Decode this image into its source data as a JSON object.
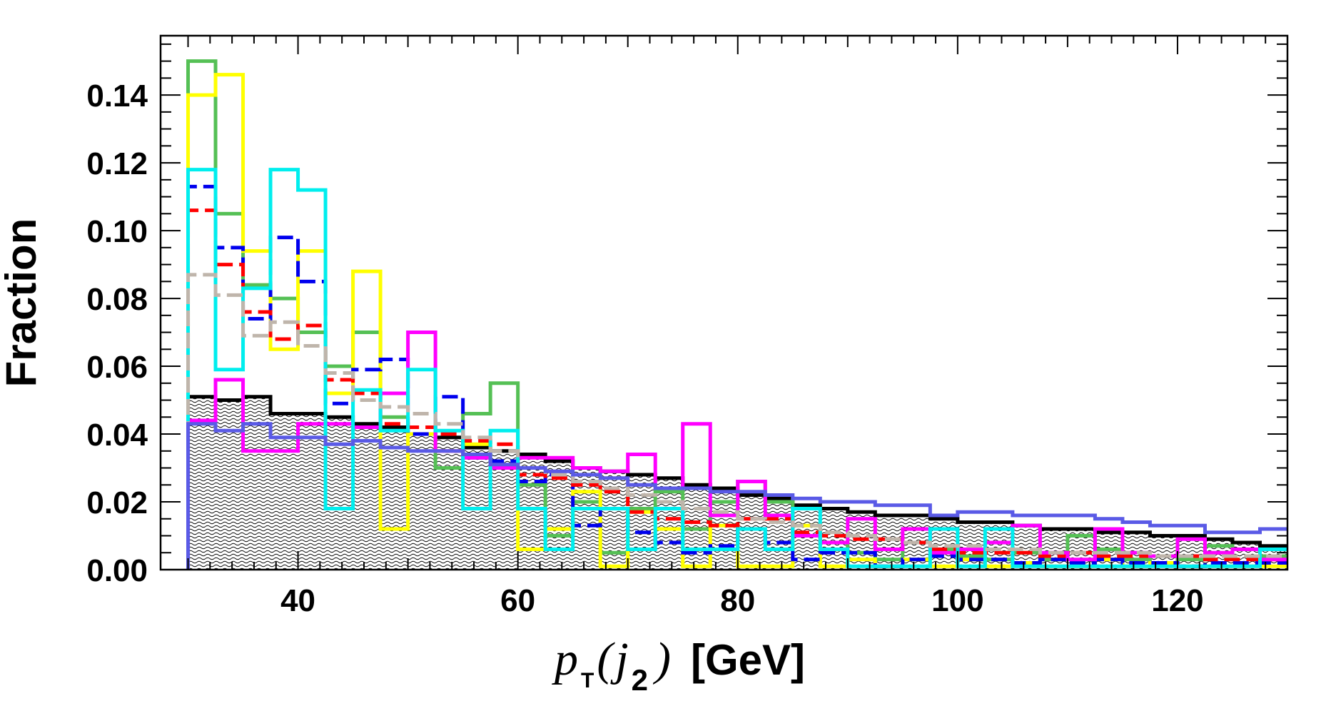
{
  "chart_data": {
    "type": "histogram",
    "title": "",
    "xlabel": "p_T(j_2) [GeV]",
    "xlabel_parts": {
      "p": "p",
      "sub_T": "T",
      "lparen": "(",
      "j": "j",
      "sub_2": "2",
      "rparen": ")",
      "unit": "[GeV]"
    },
    "ylabel": "Fraction",
    "xlim": [
      27.5,
      130
    ],
    "ylim": [
      0,
      0.1575
    ],
    "x_ticks": [
      "40",
      "60",
      "80",
      "100",
      "120"
    ],
    "y_ticks": [
      "0.00",
      "0.02",
      "0.04",
      "0.06",
      "0.08",
      "0.10",
      "0.12",
      "0.14"
    ],
    "grid": false,
    "bin_edges": [
      30,
      32.5,
      35,
      37.5,
      40,
      42.5,
      45,
      47.5,
      50,
      52.5,
      55,
      57.5,
      60,
      62.5,
      65,
      67.5,
      70,
      72.5,
      75,
      77.5,
      80,
      82.5,
      85,
      87.5,
      90,
      92.5,
      95,
      97.5,
      100,
      102.5,
      105,
      107.5,
      110,
      112.5,
      115,
      117.5,
      120,
      122.5,
      125,
      127.5,
      130
    ],
    "background": {
      "name": "background (filled)",
      "color": "#000000",
      "values": [
        0.051,
        0.05,
        0.051,
        0.046,
        0.046,
        0.045,
        0.043,
        0.042,
        0.04,
        0.039,
        0.036,
        0.035,
        0.034,
        0.032,
        0.03,
        0.029,
        0.028,
        0.027,
        0.025,
        0.024,
        0.022,
        0.021,
        0.019,
        0.018,
        0.017,
        0.016,
        0.016,
        0.015,
        0.014,
        0.014,
        0.013,
        0.012,
        0.012,
        0.011,
        0.011,
        0.01,
        0.01,
        0.009,
        0.008,
        0.007
      ]
    },
    "series": [
      {
        "name": "green",
        "color": "#55c055",
        "values": [
          0.15,
          0.105,
          0.084,
          0.08,
          0.07,
          0.06,
          0.07,
          0.045,
          0.04,
          0.03,
          0.046,
          0.055,
          0.025,
          0.01,
          0.02,
          0.005,
          0.018,
          0.023,
          0.012,
          0.02,
          0.026,
          0.02,
          0.01,
          0.008,
          0.005,
          0.003,
          0.008,
          0.006,
          0.004,
          0.003,
          0.005,
          0.003,
          0.01,
          0.006,
          0.003,
          0.004,
          0.003,
          0.007,
          0.006,
          0.004
        ],
        "dashed": false
      },
      {
        "name": "yellow",
        "color": "#ffff00",
        "values": [
          0.14,
          0.146,
          0.094,
          0.065,
          0.094,
          0.052,
          0.088,
          0.012,
          0.04,
          0.035,
          0.037,
          0.03,
          0.006,
          0.012,
          0.023,
          0.001,
          0.017,
          0.012,
          0.001,
          0.013,
          0.001,
          0.001,
          0.013,
          0.001,
          0.003,
          0.001,
          0.003,
          0.001,
          0.003,
          0.001,
          0.002,
          0.001,
          0.001,
          0.003,
          0.001,
          0.002,
          0.001,
          0.001,
          0.001,
          0.001
        ],
        "dashed": false
      },
      {
        "name": "blue",
        "color": "#0000ee",
        "values": [
          0.113,
          0.095,
          0.074,
          0.098,
          0.085,
          0.049,
          0.059,
          0.062,
          0.04,
          0.051,
          0.033,
          0.032,
          0.026,
          0.028,
          0.013,
          0.018,
          0.011,
          0.008,
          0.005,
          0.007,
          0.012,
          0.008,
          0.003,
          0.005,
          0.005,
          0.001,
          0.003,
          0.004,
          0.003,
          0.003,
          0.002,
          0.003,
          0.002,
          0.003,
          0.002,
          0.002,
          0.001,
          0.002,
          0.002,
          0.002
        ],
        "dashed": true
      },
      {
        "name": "red",
        "color": "#ff0000",
        "values": [
          0.106,
          0.09,
          0.076,
          0.068,
          0.072,
          0.056,
          0.052,
          0.043,
          0.042,
          0.04,
          0.038,
          0.037,
          0.028,
          0.027,
          0.025,
          0.023,
          0.017,
          0.015,
          0.014,
          0.013,
          0.015,
          0.015,
          0.011,
          0.01,
          0.009,
          0.009,
          0.008,
          0.006,
          0.005,
          0.005,
          0.005,
          0.004,
          0.005,
          0.004,
          0.004,
          0.004,
          0.004,
          0.003,
          0.003,
          0.003
        ],
        "dashed": true
      },
      {
        "name": "magenta",
        "color": "#ff00ff",
        "values": [
          0.044,
          0.056,
          0.035,
          0.035,
          0.043,
          0.043,
          0.042,
          0.052,
          0.07,
          0.035,
          0.033,
          0.03,
          0.033,
          0.033,
          0.03,
          0.029,
          0.034,
          0.024,
          0.043,
          0.016,
          0.026,
          0.016,
          0.01,
          0.008,
          0.015,
          0.006,
          0.012,
          0.005,
          0.006,
          0.008,
          0.013,
          0.005,
          0.003,
          0.012,
          0.005,
          0.004,
          0.009,
          0.005,
          0.006,
          0.003
        ],
        "dashed": false
      },
      {
        "name": "cyan",
        "color": "#00eeee",
        "values": [
          0.118,
          0.059,
          0.083,
          0.118,
          0.112,
          0.018,
          0.053,
          0.041,
          0.059,
          0.041,
          0.018,
          0.041,
          0.018,
          0.006,
          0.018,
          0.018,
          0.006,
          0.018,
          0.006,
          0.006,
          0.012,
          0.006,
          0.018,
          0.006,
          0.001,
          0.001,
          0.001,
          0.012,
          0.001,
          0.012,
          0.001,
          0.001,
          0.001,
          0.001,
          0.001,
          0.001,
          0.001,
          0.001,
          0.001,
          0.006
        ],
        "dashed": false
      },
      {
        "name": "grey",
        "color": "#bfb5ab",
        "values": [
          0.087,
          0.081,
          0.069,
          0.073,
          0.066,
          0.058,
          0.05,
          0.048,
          0.046,
          0.043,
          0.039,
          0.035,
          0.03,
          0.028,
          0.026,
          0.024,
          0.022,
          0.02,
          0.018,
          0.017,
          0.015,
          0.014,
          0.013,
          0.011,
          0.01,
          0.009,
          0.008,
          0.007,
          0.007,
          0.006,
          0.006,
          0.005,
          0.005,
          0.005,
          0.005,
          0.004,
          0.004,
          0.004,
          0.004,
          0.004
        ],
        "dashed": true
      },
      {
        "name": "slate-blue",
        "color": "#5a5ae6",
        "values": [
          0.043,
          0.041,
          0.043,
          0.039,
          0.039,
          0.037,
          0.038,
          0.036,
          0.035,
          0.035,
          0.034,
          0.031,
          0.03,
          0.029,
          0.028,
          0.027,
          0.025,
          0.024,
          0.024,
          0.023,
          0.023,
          0.022,
          0.021,
          0.02,
          0.02,
          0.019,
          0.019,
          0.016,
          0.017,
          0.017,
          0.016,
          0.016,
          0.016,
          0.015,
          0.014,
          0.013,
          0.013,
          0.011,
          0.011,
          0.012
        ],
        "dashed": false
      }
    ]
  }
}
